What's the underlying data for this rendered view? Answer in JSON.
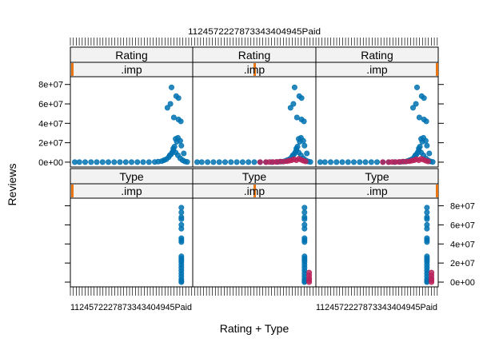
{
  "chart_data": {
    "type": "scatter",
    "xlabel": "Rating + Type",
    "ylabel": "Reviews",
    "x_tick_text": "1124572227873343404945Paid",
    "y_ticks": [
      0,
      20000000,
      40000000,
      60000000,
      80000000
    ],
    "y_tick_labels": [
      "0e+00",
      "2e+07",
      "4e+07",
      "6e+07",
      "8e+07"
    ],
    "ylim": [
      -5000000,
      88000000
    ],
    "x_range": [
      0,
      1
    ],
    "grid": false,
    "strip_header_labels": [
      "Rating",
      "Rating",
      "Rating",
      "Type",
      "Type",
      "Type"
    ],
    "strip_sub_label": ".imp",
    "colors": {
      "observed": "#0072B2",
      "imputed": "#B8225A",
      "marker": "#E87511",
      "strip_bg": "#F2F2F2"
    },
    "series": [
      {
        "name": "",
        "color": "#0072B2",
        "panels": {
          "rating": [
            {
              "x": 0.01,
              "y": 0
            },
            {
              "x": 0.05,
              "y": 0
            },
            {
              "x": 0.1,
              "y": 0
            },
            {
              "x": 0.15,
              "y": 0
            },
            {
              "x": 0.2,
              "y": 0
            },
            {
              "x": 0.25,
              "y": 0
            },
            {
              "x": 0.3,
              "y": 0
            },
            {
              "x": 0.35,
              "y": 0
            },
            {
              "x": 0.4,
              "y": 0
            },
            {
              "x": 0.45,
              "y": 0
            },
            {
              "x": 0.5,
              "y": 0
            },
            {
              "x": 0.55,
              "y": 0
            },
            {
              "x": 0.6,
              "y": 0
            },
            {
              "x": 0.65,
              "y": 0
            },
            {
              "x": 0.7,
              "y": 200000
            },
            {
              "x": 0.73,
              "y": 500000
            },
            {
              "x": 0.76,
              "y": 1000000
            },
            {
              "x": 0.78,
              "y": 2000000
            },
            {
              "x": 0.8,
              "y": 3000000
            },
            {
              "x": 0.82,
              "y": 5000000
            },
            {
              "x": 0.84,
              "y": 8000000
            },
            {
              "x": 0.86,
              "y": 12000000
            },
            {
              "x": 0.88,
              "y": 10000000
            },
            {
              "x": 0.9,
              "y": 7000000
            },
            {
              "x": 0.92,
              "y": 4000000
            },
            {
              "x": 0.94,
              "y": 2000000
            },
            {
              "x": 0.96,
              "y": 800000
            },
            {
              "x": 0.98,
              "y": 300000
            },
            {
              "x": 0.87,
              "y": 16000000
            },
            {
              "x": 0.89,
              "y": 21000000
            },
            {
              "x": 0.9,
              "y": 25000000
            },
            {
              "x": 0.92,
              "y": 22000000
            },
            {
              "x": 0.86,
              "y": 14000000
            },
            {
              "x": 0.93,
              "y": 17000000
            },
            {
              "x": 0.85,
              "y": 10000000
            },
            {
              "x": 0.83,
              "y": 7000000
            },
            {
              "x": 0.95,
              "y": 9000000
            },
            {
              "x": 0.81,
              "y": 56000000
            },
            {
              "x": 0.835,
              "y": 60000000
            },
            {
              "x": 0.845,
              "y": 77000000
            },
            {
              "x": 0.885,
              "y": 68000000
            },
            {
              "x": 0.905,
              "y": 66000000
            },
            {
              "x": 0.905,
              "y": 44000000
            },
            {
              "x": 0.925,
              "y": 42000000
            },
            {
              "x": 0.865,
              "y": 46000000
            },
            {
              "x": 0.88,
              "y": 24000000
            }
          ],
          "type": [
            {
              "x": 0.93,
              "y": 78000000
            },
            {
              "x": 0.93,
              "y": 73000000
            },
            {
              "x": 0.93,
              "y": 68000000
            },
            {
              "x": 0.93,
              "y": 66000000
            },
            {
              "x": 0.93,
              "y": 60000000
            },
            {
              "x": 0.93,
              "y": 56000000
            },
            {
              "x": 0.93,
              "y": 46000000
            },
            {
              "x": 0.93,
              "y": 44000000
            },
            {
              "x": 0.93,
              "y": 42000000
            },
            {
              "x": 0.93,
              "y": 27000000
            },
            {
              "x": 0.93,
              "y": 25000000
            },
            {
              "x": 0.93,
              "y": 23000000
            },
            {
              "x": 0.93,
              "y": 21000000
            },
            {
              "x": 0.93,
              "y": 18000000
            },
            {
              "x": 0.93,
              "y": 15000000
            },
            {
              "x": 0.93,
              "y": 12000000
            },
            {
              "x": 0.93,
              "y": 9000000
            },
            {
              "x": 0.93,
              "y": 6000000
            },
            {
              "x": 0.93,
              "y": 3000000
            },
            {
              "x": 0.93,
              "y": 1000000
            },
            {
              "x": 0.93,
              "y": 0
            }
          ]
        }
      },
      {
        "name": "",
        "color": "#B8225A",
        "panels": {
          "rating": [
            {
              "x": 0.55,
              "y": 0
            },
            {
              "x": 0.6,
              "y": 0
            },
            {
              "x": 0.63,
              "y": 100000
            },
            {
              "x": 0.66,
              "y": 200000
            },
            {
              "x": 0.69,
              "y": 300000
            },
            {
              "x": 0.72,
              "y": 500000
            },
            {
              "x": 0.75,
              "y": 600000
            },
            {
              "x": 0.78,
              "y": 900000
            },
            {
              "x": 0.8,
              "y": 1500000
            },
            {
              "x": 0.82,
              "y": 2000000
            },
            {
              "x": 0.84,
              "y": 3000000
            },
            {
              "x": 0.86,
              "y": 2000000
            },
            {
              "x": 0.88,
              "y": 3500000
            },
            {
              "x": 0.9,
              "y": 2500000
            },
            {
              "x": 0.92,
              "y": 1500000
            },
            {
              "x": 0.94,
              "y": 800000
            }
          ],
          "type": [
            {
              "x": 0.97,
              "y": 0
            },
            {
              "x": 0.97,
              "y": 2000000
            },
            {
              "x": 0.97,
              "y": 4000000
            },
            {
              "x": 0.97,
              "y": 7000000
            },
            {
              "x": 0.97,
              "y": 10000000
            }
          ]
        }
      }
    ]
  }
}
